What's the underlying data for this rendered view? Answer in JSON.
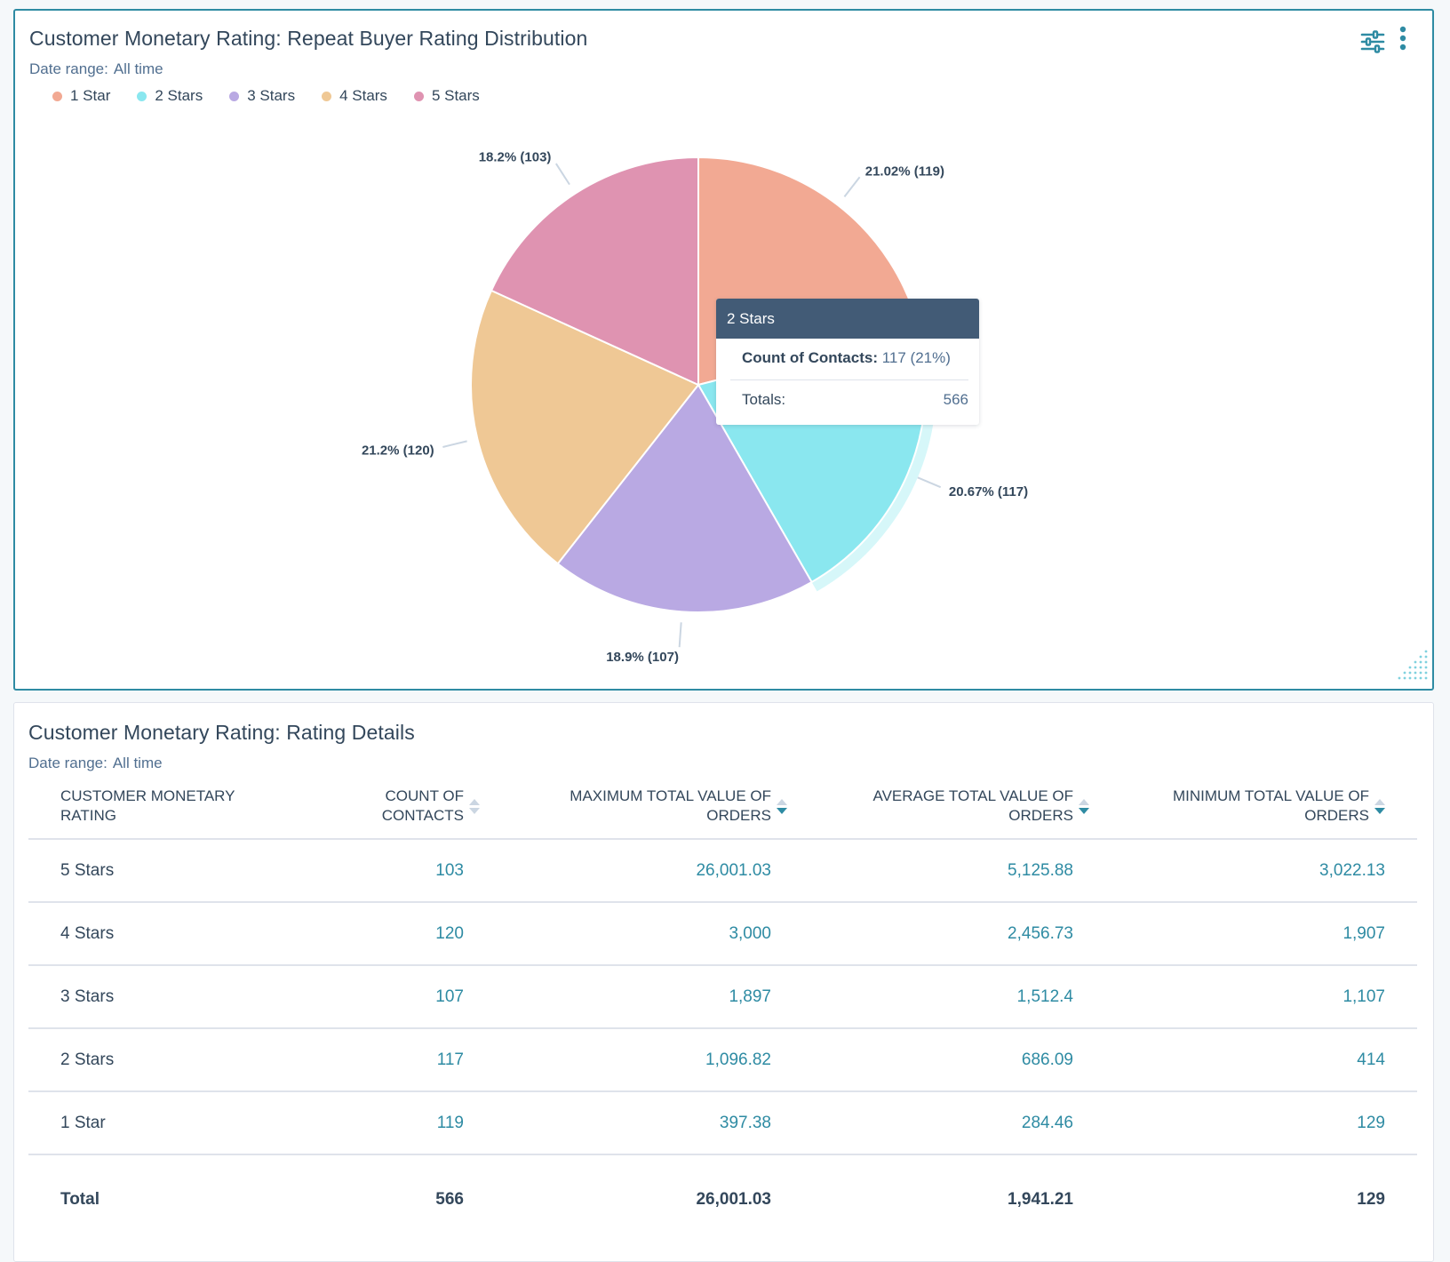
{
  "chart_card": {
    "title": "Customer Monetary Rating: Repeat Buyer Rating Distribution",
    "date_range_label": "Date range:",
    "date_range_value": "All time",
    "icons": [
      "filter-sliders-icon",
      "more-vertical-icon"
    ],
    "tooltip": {
      "title": "2 Stars",
      "metric_label": "Count of Contacts:",
      "metric_value": "117 (21%)",
      "totals_label": "Totals:",
      "totals_value": "566"
    }
  },
  "chart_data": {
    "type": "pie",
    "legend_position": "top-left",
    "slices": [
      {
        "name": "1 Star",
        "value": 119,
        "label": "21.02% (119)",
        "color": "#f2a993"
      },
      {
        "name": "2 Stars",
        "value": 117,
        "label": "20.67% (117)",
        "color": "#8ae7ef"
      },
      {
        "name": "3 Stars",
        "value": 107,
        "label": "18.9% (107)",
        "color": "#b9a9e3"
      },
      {
        "name": "4 Stars",
        "value": 120,
        "label": "21.2% (120)",
        "color": "#efc895"
      },
      {
        "name": "5 Stars",
        "value": 103,
        "label": "18.2% (103)",
        "color": "#df93b1"
      }
    ],
    "highlighted": "2 Stars",
    "total": 566
  },
  "table_card": {
    "title": "Customer Monetary Rating: Rating Details",
    "date_range_label": "Date range:",
    "date_range_value": "All time",
    "columns": [
      "CUSTOMER MONETARY RATING",
      "COUNT OF CONTACTS",
      "MAXIMUM TOTAL VALUE OF ORDERS",
      "AVERAGE TOTAL VALUE OF ORDERS",
      "MINIMUM TOTAL VALUE OF ORDERS"
    ],
    "rows": [
      [
        "5 Stars",
        "103",
        "26,001.03",
        "5,125.88",
        "3,022.13"
      ],
      [
        "4 Stars",
        "120",
        "3,000",
        "2,456.73",
        "1,907"
      ],
      [
        "3 Stars",
        "107",
        "1,897",
        "1,512.4",
        "1,107"
      ],
      [
        "2 Stars",
        "117",
        "1,096.82",
        "686.09",
        "414"
      ],
      [
        "1 Star",
        "119",
        "397.38",
        "284.46",
        "129"
      ]
    ],
    "total": [
      "Total",
      "566",
      "26,001.03",
      "1,941.21",
      "129"
    ]
  }
}
